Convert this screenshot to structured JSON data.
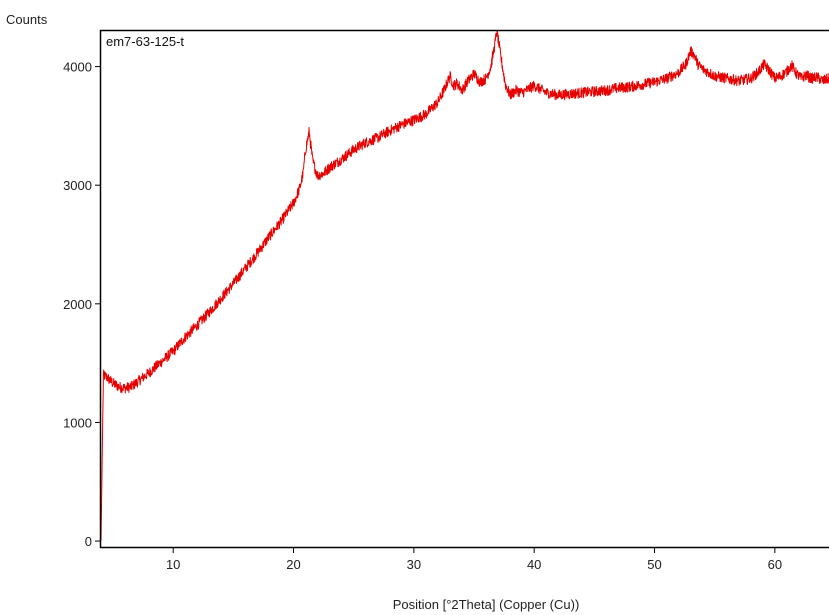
{
  "chart_data": {
    "type": "line",
    "title": "",
    "ylabel": "Counts",
    "xlabel": "Position [°2Theta] (Copper (Cu))",
    "xlim": [
      4,
      64.5
    ],
    "ylim": [
      -50,
      4300
    ],
    "xticks": [
      10,
      20,
      30,
      40,
      50,
      60
    ],
    "yticks": [
      0,
      1000,
      2000,
      3000,
      4000
    ],
    "grid": false,
    "legend": "top-left",
    "series": [
      {
        "name": "em7-63-125-t",
        "color": "#e60000",
        "x": [
          4.0,
          4.2,
          4.5,
          5.0,
          5.5,
          6.0,
          6.5,
          7.0,
          8.0,
          9.0,
          10.0,
          11.0,
          12.0,
          13.0,
          14.0,
          15.0,
          16.0,
          17.0,
          18.0,
          19.0,
          20.0,
          20.5,
          20.8,
          21.0,
          21.3,
          21.6,
          22.0,
          22.5,
          23.0,
          24.0,
          25.0,
          26.0,
          27.0,
          28.0,
          29.0,
          30.0,
          31.0,
          32.0,
          32.5,
          33.0,
          33.3,
          33.6,
          34.0,
          34.5,
          35.0,
          35.5,
          36.0,
          36.4,
          36.7,
          36.9,
          37.2,
          37.6,
          38.0,
          38.5,
          39.0,
          40.0,
          41.0,
          42.0,
          43.0,
          44.0,
          45.0,
          46.0,
          47.0,
          48.0,
          49.0,
          50.0,
          51.0,
          52.0,
          52.6,
          53.0,
          53.3,
          53.6,
          54.0,
          54.5,
          55.0,
          56.0,
          57.0,
          58.0,
          58.6,
          59.1,
          59.6,
          60.0,
          60.5,
          61.0,
          61.4,
          61.8,
          62.2,
          62.6,
          63.0,
          63.5,
          64.0,
          64.5
        ],
        "y": [
          0,
          1400,
          1380,
          1330,
          1300,
          1290,
          1300,
          1340,
          1420,
          1510,
          1600,
          1720,
          1820,
          1930,
          2050,
          2170,
          2300,
          2430,
          2570,
          2700,
          2850,
          2970,
          3100,
          3300,
          3450,
          3200,
          3080,
          3100,
          3150,
          3220,
          3300,
          3360,
          3400,
          3460,
          3510,
          3550,
          3600,
          3700,
          3800,
          3920,
          3840,
          3860,
          3800,
          3880,
          3940,
          3870,
          3900,
          4000,
          4170,
          4300,
          4100,
          3850,
          3760,
          3800,
          3780,
          3840,
          3780,
          3760,
          3770,
          3780,
          3790,
          3800,
          3820,
          3830,
          3850,
          3870,
          3900,
          3950,
          4020,
          4130,
          4100,
          4020,
          3980,
          3950,
          3920,
          3900,
          3880,
          3900,
          3950,
          4020,
          3960,
          3900,
          3920,
          3960,
          4010,
          3940,
          3900,
          3930,
          3900,
          3910,
          3880,
          3900
        ]
      }
    ]
  }
}
